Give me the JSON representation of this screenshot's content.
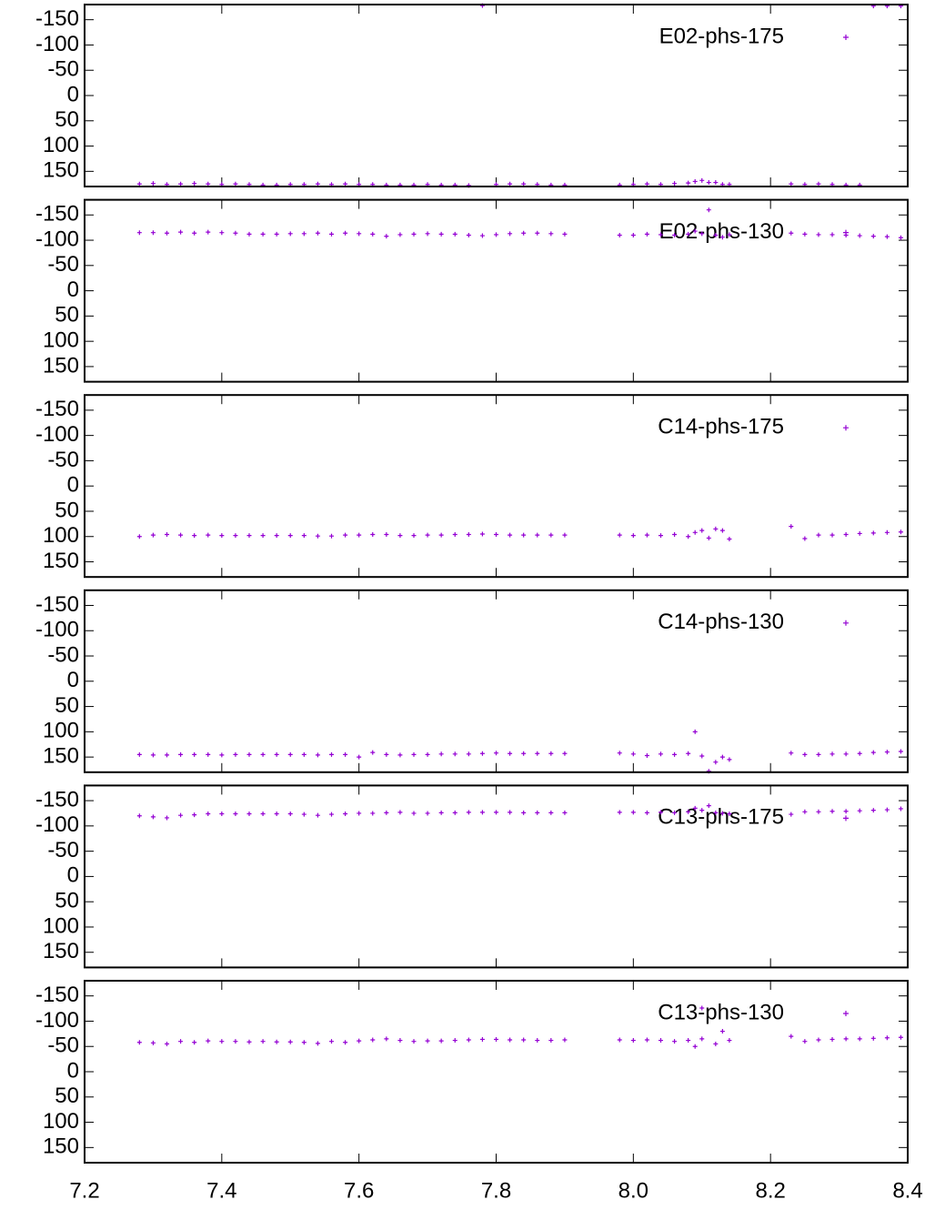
{
  "chart_data": [
    {
      "type": "scatter",
      "xlim": [
        7.2,
        8.4
      ],
      "ylim": [
        180,
        -180
      ],
      "yticks": [
        -150,
        -100,
        -50,
        0,
        50,
        100,
        150
      ],
      "x": [
        7.28,
        7.3,
        7.32,
        7.34,
        7.36,
        7.38,
        7.4,
        7.42,
        7.44,
        7.46,
        7.48,
        7.5,
        7.52,
        7.54,
        7.56,
        7.58,
        7.6,
        7.62,
        7.64,
        7.66,
        7.68,
        7.7,
        7.72,
        7.74,
        7.76,
        7.78,
        7.8,
        7.82,
        7.84,
        7.86,
        7.88,
        7.9,
        7.98,
        8.0,
        8.02,
        8.04,
        8.06,
        8.08,
        8.1,
        8.12,
        8.14,
        8.23,
        8.25,
        8.27,
        8.29,
        8.31,
        8.33,
        8.35,
        8.37,
        8.39,
        8.09,
        8.11,
        8.13
      ],
      "series": [
        {
          "name": "E02-phs-175",
          "color": "#9400d3",
          "values": [
            175,
            174,
            176,
            175,
            174,
            175,
            176,
            175,
            176,
            177,
            177,
            176,
            176,
            175,
            176,
            175,
            176,
            176,
            177,
            177,
            177,
            176,
            177,
            177,
            178,
            -178,
            176,
            175,
            175,
            176,
            177,
            177,
            177,
            176,
            175,
            176,
            174,
            173,
            168,
            172,
            176,
            175,
            176,
            175,
            176,
            177,
            177,
            -177,
            -177,
            -177,
            170,
            172,
            176
          ]
        }
      ]
    },
    {
      "type": "scatter",
      "xlim": [
        7.2,
        8.4
      ],
      "ylim": [
        180,
        -180
      ],
      "yticks": [
        -150,
        -100,
        -50,
        0,
        50,
        100,
        150
      ],
      "x": [
        7.28,
        7.3,
        7.32,
        7.34,
        7.36,
        7.38,
        7.4,
        7.42,
        7.44,
        7.46,
        7.48,
        7.5,
        7.52,
        7.54,
        7.56,
        7.58,
        7.6,
        7.62,
        7.64,
        7.66,
        7.68,
        7.7,
        7.72,
        7.74,
        7.76,
        7.78,
        7.8,
        7.82,
        7.84,
        7.86,
        7.88,
        7.9,
        7.98,
        8.0,
        8.02,
        8.04,
        8.06,
        8.08,
        8.1,
        8.12,
        8.14,
        8.23,
        8.25,
        8.27,
        8.29,
        8.31,
        8.33,
        8.35,
        8.37,
        8.39,
        8.09,
        8.11,
        8.13
      ],
      "series": [
        {
          "name": "E02-phs-130",
          "color": "#9400d3",
          "values": [
            -115,
            -115,
            -114,
            -116,
            -114,
            -116,
            -115,
            -114,
            -112,
            -112,
            -112,
            -113,
            -113,
            -114,
            -112,
            -114,
            -113,
            -112,
            -108,
            -111,
            -112,
            -113,
            -112,
            -112,
            -110,
            -109,
            -111,
            -113,
            -114,
            -114,
            -113,
            -112,
            -110,
            -110,
            -112,
            -111,
            -110,
            -112,
            -113,
            -110,
            -111,
            -114,
            -112,
            -111,
            -111,
            -110,
            -109,
            -108,
            -107,
            -105,
            -118,
            -160,
            -106
          ]
        }
      ]
    },
    {
      "type": "scatter",
      "xlim": [
        7.2,
        8.4
      ],
      "ylim": [
        180,
        -180
      ],
      "yticks": [
        -150,
        -100,
        -50,
        0,
        50,
        100,
        150
      ],
      "x": [
        7.28,
        7.3,
        7.32,
        7.34,
        7.36,
        7.38,
        7.4,
        7.42,
        7.44,
        7.46,
        7.48,
        7.5,
        7.52,
        7.54,
        7.56,
        7.58,
        7.6,
        7.62,
        7.64,
        7.66,
        7.68,
        7.7,
        7.72,
        7.74,
        7.76,
        7.78,
        7.8,
        7.82,
        7.84,
        7.86,
        7.88,
        7.9,
        7.98,
        8.0,
        8.02,
        8.04,
        8.06,
        8.08,
        8.1,
        8.12,
        8.14,
        8.23,
        8.25,
        8.27,
        8.29,
        8.31,
        8.33,
        8.35,
        8.37,
        8.39,
        8.09,
        8.11,
        8.13
      ],
      "series": [
        {
          "name": "C14-phs-175",
          "color": "#9400d3",
          "values": [
            100,
            97,
            96,
            97,
            98,
            97,
            98,
            98,
            98,
            98,
            98,
            98,
            98,
            99,
            99,
            97,
            97,
            96,
            96,
            98,
            98,
            97,
            97,
            96,
            96,
            95,
            96,
            97,
            97,
            97,
            97,
            97,
            97,
            98,
            97,
            98,
            96,
            100,
            88,
            85,
            105,
            80,
            104,
            97,
            97,
            96,
            94,
            93,
            92,
            91,
            92,
            103,
            88
          ]
        }
      ]
    },
    {
      "type": "scatter",
      "xlim": [
        7.2,
        8.4
      ],
      "ylim": [
        180,
        -180
      ],
      "yticks": [
        -150,
        -100,
        -50,
        0,
        50,
        100,
        150
      ],
      "x": [
        7.28,
        7.3,
        7.32,
        7.34,
        7.36,
        7.38,
        7.4,
        7.42,
        7.44,
        7.46,
        7.48,
        7.5,
        7.52,
        7.54,
        7.56,
        7.58,
        7.6,
        7.62,
        7.64,
        7.66,
        7.68,
        7.7,
        7.72,
        7.74,
        7.76,
        7.78,
        7.8,
        7.82,
        7.84,
        7.86,
        7.88,
        7.9,
        7.98,
        8.0,
        8.02,
        8.04,
        8.06,
        8.08,
        8.1,
        8.12,
        8.14,
        8.23,
        8.25,
        8.27,
        8.29,
        8.31,
        8.33,
        8.35,
        8.37,
        8.39,
        8.09,
        8.11,
        8.13
      ],
      "series": [
        {
          "name": "C14-phs-130",
          "color": "#9400d3",
          "values": [
            145,
            146,
            146,
            145,
            145,
            145,
            146,
            145,
            145,
            145,
            145,
            145,
            145,
            146,
            145,
            145,
            150,
            141,
            145,
            146,
            145,
            145,
            144,
            144,
            144,
            143,
            142,
            143,
            143,
            143,
            143,
            143,
            142,
            144,
            147,
            144,
            145,
            143,
            148,
            160,
            155,
            142,
            145,
            145,
            144,
            144,
            143,
            141,
            140,
            139,
            100,
            178,
            150
          ]
        }
      ]
    },
    {
      "type": "scatter",
      "xlim": [
        7.2,
        8.4
      ],
      "ylim": [
        180,
        -180
      ],
      "yticks": [
        -150,
        -100,
        -50,
        0,
        50,
        100,
        150
      ],
      "x": [
        7.28,
        7.3,
        7.32,
        7.34,
        7.36,
        7.38,
        7.4,
        7.42,
        7.44,
        7.46,
        7.48,
        7.5,
        7.52,
        7.54,
        7.56,
        7.58,
        7.6,
        7.62,
        7.64,
        7.66,
        7.68,
        7.7,
        7.72,
        7.74,
        7.76,
        7.78,
        7.8,
        7.82,
        7.84,
        7.86,
        7.88,
        7.9,
        7.98,
        8.0,
        8.02,
        8.04,
        8.06,
        8.08,
        8.1,
        8.12,
        8.14,
        8.23,
        8.25,
        8.27,
        8.29,
        8.31,
        8.33,
        8.35,
        8.37,
        8.39,
        8.09,
        8.11,
        8.13
      ],
      "series": [
        {
          "name": "C13-phs-175",
          "color": "#9400d3",
          "values": [
            -120,
            -118,
            -116,
            -121,
            -122,
            -124,
            -124,
            -124,
            -124,
            -124,
            -124,
            -124,
            -123,
            -121,
            -123,
            -124,
            -125,
            -125,
            -126,
            -127,
            -125,
            -125,
            -126,
            -126,
            -127,
            -127,
            -127,
            -127,
            -126,
            -126,
            -126,
            -126,
            -127,
            -127,
            -126,
            -127,
            -126,
            -128,
            -131,
            -126,
            -124,
            -123,
            -128,
            -128,
            -129,
            -129,
            -130,
            -131,
            -132,
            -134,
            -135,
            -140,
            -125
          ]
        }
      ]
    },
    {
      "type": "scatter",
      "xlim": [
        7.2,
        8.4
      ],
      "ylim": [
        180,
        -180
      ],
      "yticks": [
        -150,
        -100,
        -50,
        0,
        50,
        100,
        150
      ],
      "xticks": [
        7.2,
        7.4,
        7.6,
        7.8,
        {
          "value": 8,
          "label": "8.0"
        },
        8.2,
        8.4
      ],
      "x": [
        7.28,
        7.3,
        7.32,
        7.34,
        7.36,
        7.38,
        7.4,
        7.42,
        7.44,
        7.46,
        7.48,
        7.5,
        7.52,
        7.54,
        7.56,
        7.58,
        7.6,
        7.62,
        7.64,
        7.66,
        7.68,
        7.7,
        7.72,
        7.74,
        7.76,
        7.78,
        7.8,
        7.82,
        7.84,
        7.86,
        7.88,
        7.9,
        7.98,
        8.0,
        8.02,
        8.04,
        8.06,
        8.08,
        8.1,
        8.12,
        8.14,
        8.23,
        8.25,
        8.27,
        8.29,
        8.31,
        8.33,
        8.35,
        8.37,
        8.39,
        8.09,
        8.1,
        8.13
      ],
      "series": [
        {
          "name": "C13-phs-130",
          "color": "#9400d3",
          "values": [
            -58,
            -57,
            -55,
            -60,
            -58,
            -61,
            -60,
            -60,
            -59,
            -60,
            -59,
            -59,
            -58,
            -56,
            -60,
            -58,
            -61,
            -63,
            -65,
            -62,
            -60,
            -61,
            -61,
            -62,
            -63,
            -64,
            -64,
            -63,
            -63,
            -62,
            -62,
            -63,
            -63,
            -62,
            -63,
            -62,
            -60,
            -62,
            -65,
            -55,
            -62,
            -70,
            -60,
            -63,
            -64,
            -65,
            -65,
            -66,
            -67,
            -68,
            -50,
            -126,
            -80
          ]
        }
      ]
    }
  ]
}
